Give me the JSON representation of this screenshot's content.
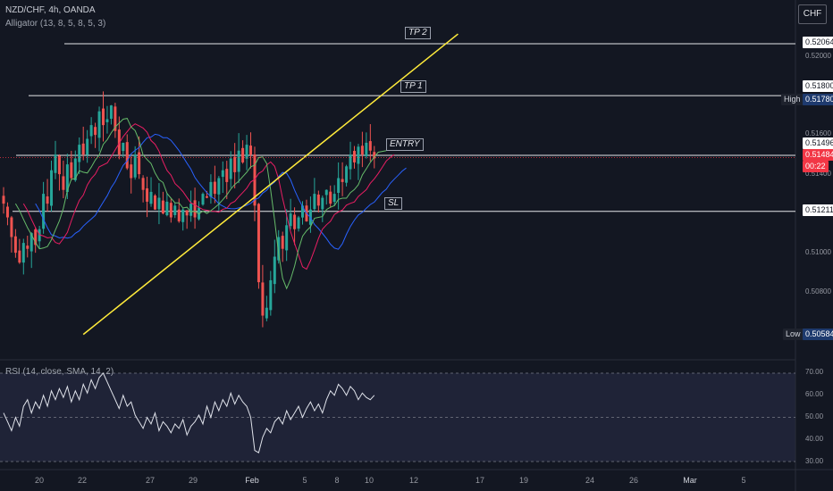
{
  "header": {
    "symbol": "NZD/CHF, 4h, OANDA",
    "indicator": "Alligator (13, 8, 5, 8, 5, 3)",
    "currency": "CHF"
  },
  "annotations": {
    "tp2": "TP 2",
    "tp1": "TP 1",
    "entry": "ENTRY",
    "sl": "SL"
  },
  "price_axis": {
    "ticks": [
      "0.52000",
      "0.51600",
      "0.51400",
      "0.51000",
      "0.50800"
    ],
    "tags": {
      "tp2": "0.52064",
      "tp1": "0.51800",
      "high_label": "High",
      "high": "0.51780",
      "entry": "0.51496",
      "last": "0.51484",
      "countdown": "00:22",
      "sl": "0.51211",
      "low_label": "Low",
      "low": "0.50584"
    }
  },
  "rsi_panel": {
    "label": "RSI (14, close, SMA, 14, 2)",
    "ticks": [
      "70.00",
      "60.00",
      "50.00",
      "40.00",
      "30.00"
    ]
  },
  "time_axis": [
    "20",
    "22",
    "27",
    "29",
    "Feb",
    "5",
    "8",
    "10",
    "12",
    "17",
    "19",
    "24",
    "26",
    "Mar",
    "5"
  ],
  "colors": {
    "background": "#131722",
    "candle_up": "#26a69a",
    "candle_down": "#ef5350",
    "trendline": "#ffeb3b",
    "alligator_jaw": "#2962ff",
    "alligator_teeth": "#e91e63",
    "alligator_lips": "#66bb6a",
    "rsi_line": "#e0e3eb",
    "rsi_band": "#2a2e48",
    "last_price": "#f23645"
  },
  "chart_data": [
    {
      "type": "candlestick",
      "title": "NZD/CHF, 4h, OANDA",
      "y_range": [
        0.5045,
        0.5225
      ],
      "horizontal_levels": [
        {
          "name": "TP 2",
          "price": 0.52064
        },
        {
          "name": "TP 1",
          "price": 0.518
        },
        {
          "name": "ENTRY",
          "price": 0.51496
        },
        {
          "name": "SL",
          "price": 0.51211
        }
      ],
      "trendline": {
        "from": [
          20,
          0.50584
        ],
        "to": [
          114,
          0.52114
        ]
      },
      "closes": [
        0.5125,
        0.5118,
        0.5108,
        0.51,
        0.5095,
        0.5105,
        0.5102,
        0.511,
        0.5104,
        0.5112,
        0.513,
        0.5125,
        0.5142,
        0.515,
        0.514,
        0.5132,
        0.5145,
        0.5138,
        0.5148,
        0.5155,
        0.515,
        0.5158,
        0.5165,
        0.516,
        0.5172,
        0.5165,
        0.5168,
        0.5175,
        0.5162,
        0.515,
        0.5156,
        0.5143,
        0.5138,
        0.515,
        0.514,
        0.5132,
        0.5126,
        0.5131,
        0.5122,
        0.5128,
        0.512,
        0.5126,
        0.5118,
        0.5124,
        0.5116,
        0.5122,
        0.5119,
        0.5125,
        0.5118,
        0.5123,
        0.513,
        0.5128,
        0.5136,
        0.513,
        0.5138,
        0.5142,
        0.5136,
        0.5148,
        0.5141,
        0.5152,
        0.5146,
        0.5155,
        0.515,
        0.5124,
        0.5085,
        0.5068,
        0.5072,
        0.5086,
        0.5098,
        0.5108,
        0.5102,
        0.5114,
        0.512,
        0.5112,
        0.5118,
        0.5124,
        0.5116,
        0.5122,
        0.513,
        0.5124,
        0.5128,
        0.5132,
        0.5125,
        0.513,
        0.5138,
        0.5136,
        0.5144,
        0.515,
        0.5146,
        0.5154,
        0.515,
        0.5156,
        0.5152,
        0.5148
      ],
      "alligator": {
        "jaw_period": 13,
        "teeth_period": 8,
        "lips_period": 5
      }
    },
    {
      "type": "line",
      "title": "RSI (14, close, SMA, 14, 2)",
      "ylim": [
        30,
        70
      ],
      "values": [
        52,
        48,
        44,
        50,
        46,
        55,
        58,
        52,
        57,
        54,
        60,
        55,
        62,
        58,
        63,
        59,
        64,
        57,
        62,
        58,
        65,
        61,
        67,
        63,
        68,
        70,
        66,
        62,
        58,
        54,
        60,
        55,
        57,
        51,
        48,
        45,
        50,
        47,
        52,
        44,
        48,
        46,
        43,
        47,
        45,
        49,
        42,
        46,
        48,
        51,
        47,
        55,
        50,
        57,
        53,
        58,
        55,
        61,
        56,
        60,
        57,
        55,
        50,
        35,
        34,
        41,
        45,
        43,
        48,
        50,
        47,
        53,
        49,
        52,
        55,
        50,
        54,
        57,
        53,
        56,
        52,
        58,
        62,
        60,
        65,
        63,
        60,
        64,
        62,
        58,
        61,
        59,
        58,
        60
      ]
    }
  ]
}
